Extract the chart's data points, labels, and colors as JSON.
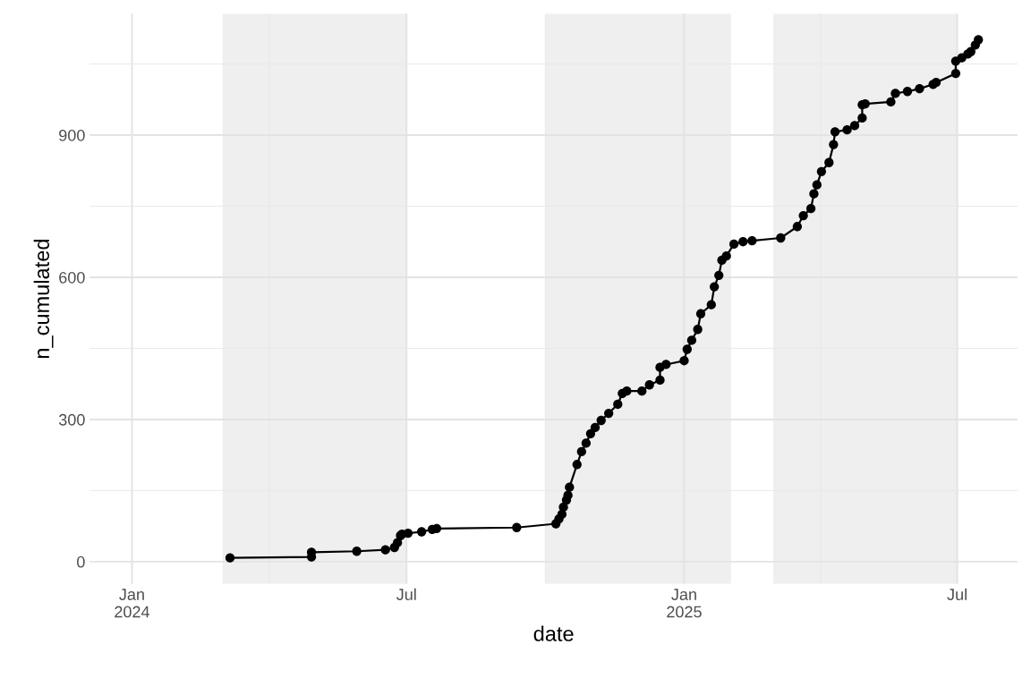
{
  "chart_data": {
    "type": "line",
    "xlabel": "date",
    "ylabel": "n_cumulated",
    "x": [
      "2024-03-06",
      "2024-04-29",
      "2024-04-29",
      "2024-05-29",
      "2024-06-17",
      "2024-06-23",
      "2024-06-25",
      "2024-06-27",
      "2024-06-28",
      "2024-07-02",
      "2024-07-11",
      "2024-07-18",
      "2024-07-21",
      "2024-09-12",
      "2024-10-08",
      "2024-10-10",
      "2024-10-12",
      "2024-10-13",
      "2024-10-15",
      "2024-10-16",
      "2024-10-17",
      "2024-10-22",
      "2024-10-25",
      "2024-10-28",
      "2024-10-31",
      "2024-11-03",
      "2024-11-07",
      "2024-11-12",
      "2024-11-18",
      "2024-11-21",
      "2024-11-24",
      "2024-12-04",
      "2024-12-09",
      "2024-12-16",
      "2024-12-16",
      "2024-12-20",
      "2025-01-01",
      "2025-01-03",
      "2025-01-06",
      "2025-01-10",
      "2025-01-12",
      "2025-01-19",
      "2025-01-21",
      "2025-01-24",
      "2025-01-26",
      "2025-01-29",
      "2025-02-03",
      "2025-02-09",
      "2025-02-15",
      "2025-03-06",
      "2025-03-17",
      "2025-03-21",
      "2025-03-26",
      "2025-03-28",
      "2025-03-30",
      "2025-04-02",
      "2025-04-07",
      "2025-04-10",
      "2025-04-11",
      "2025-04-19",
      "2025-04-24",
      "2025-04-29",
      "2025-04-29",
      "2025-05-01",
      "2025-05-18",
      "2025-05-21",
      "2025-05-29",
      "2025-06-06",
      "2025-06-15",
      "2025-06-17",
      "2025-06-30",
      "2025-06-30",
      "2025-07-04",
      "2025-07-08",
      "2025-07-10",
      "2025-07-13",
      "2025-07-15"
    ],
    "series": [
      {
        "color": "#000000",
        "values": [
          8,
          10,
          20,
          22,
          25,
          30,
          40,
          55,
          58,
          60,
          63,
          68,
          70,
          72,
          80,
          90,
          100,
          115,
          130,
          140,
          157,
          205,
          232,
          250,
          270,
          283,
          298,
          313,
          332,
          355,
          360,
          360,
          373,
          383,
          410,
          416,
          424,
          448,
          467,
          490,
          523,
          542,
          580,
          604,
          636,
          645,
          670,
          675,
          677,
          683,
          707,
          730,
          745,
          776,
          795,
          823,
          842,
          880,
          907,
          911,
          920,
          936,
          964,
          966,
          970,
          988,
          992,
          998,
          1007,
          1011,
          1030,
          1056,
          1063,
          1071,
          1076,
          1090,
          1101
        ]
      }
    ],
    "marker": "circle",
    "line_style": "solid",
    "grid": true,
    "xlim": [
      "2023-12-04",
      "2025-08-10"
    ],
    "xticks": [
      {
        "value": "2024-01-01",
        "label": "Jan\n2024"
      },
      {
        "value": "2024-07-01",
        "label": "Jul"
      },
      {
        "value": "2025-01-01",
        "label": "Jan\n2025"
      },
      {
        "value": "2025-07-01",
        "label": "Jul"
      }
    ],
    "ylim": [
      -47,
      1156
    ],
    "yticks": [
      0,
      300,
      600,
      900
    ],
    "bands": [
      {
        "axis": "x",
        "from": "2024-03-01",
        "to": "2024-07-01",
        "color": "#efefef"
      },
      {
        "axis": "x",
        "from": "2024-10-01",
        "to": "2025-02-01",
        "color": "#efefef"
      },
      {
        "axis": "x",
        "from": "2025-03-01",
        "to": "2025-07-01",
        "color": "#efefef"
      }
    ]
  }
}
